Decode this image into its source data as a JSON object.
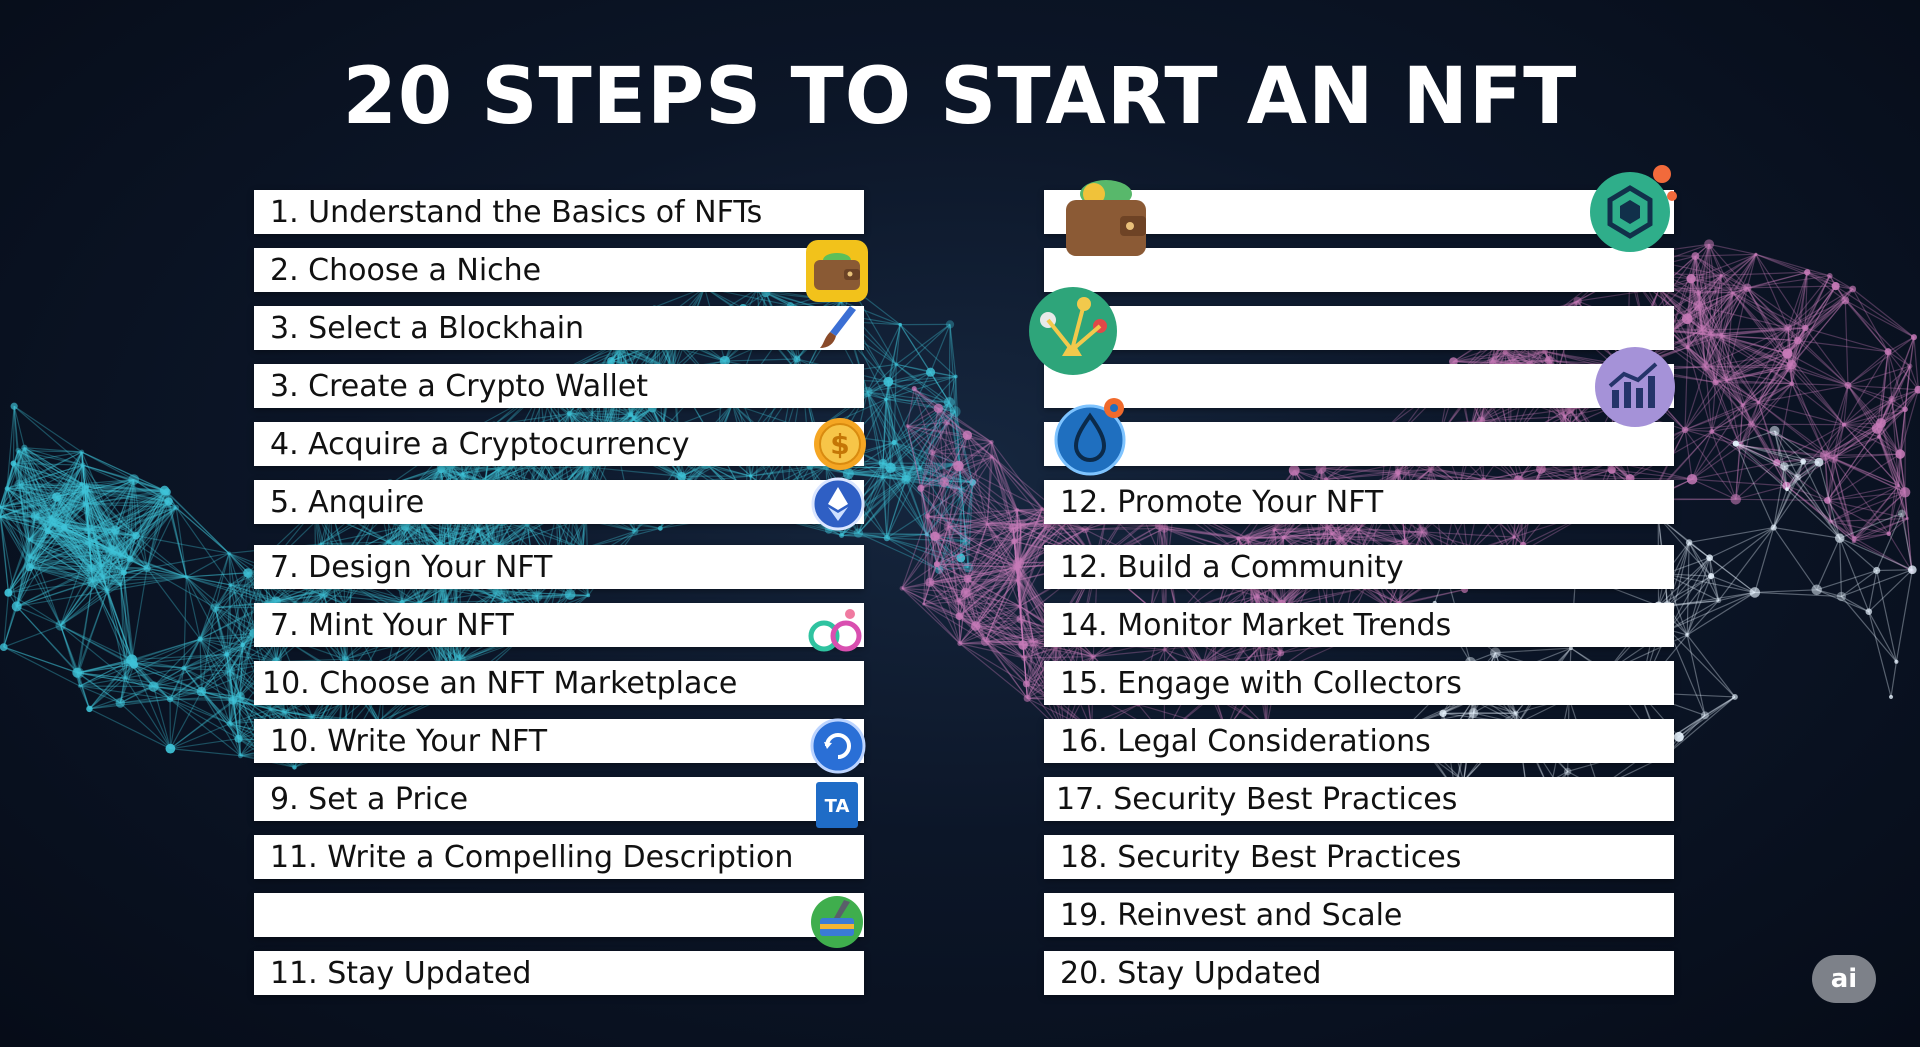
{
  "title": "20 STEPS TO START AN NFT",
  "left_steps": [
    {
      "label": "1. Understand the Basics of NFTs"
    },
    {
      "label": "2. Choose a Niche",
      "icon": "wallet-icon"
    },
    {
      "label": "3. Select a Blockhain",
      "icon": "paintbrush-icon"
    },
    {
      "label": "3. Create a Crypto Wallet"
    },
    {
      "label": "4. Acquire a Cryptocurrency",
      "icon": "coin-icon"
    },
    {
      "label": "5. Anquire",
      "icon": "ethereum-icon"
    },
    {
      "label": "7. Design Your NFT"
    },
    {
      "label": "7. Mint Your NFT",
      "icon": "link-rings-icon"
    },
    {
      "label": "10. Choose an NFT Marketplace"
    },
    {
      "label": "10. Write Your NFT",
      "icon": "refresh-globe-icon"
    },
    {
      "label": "9. Set a Price",
      "icon": "translate-icon"
    },
    {
      "label": "11. Write a Compelling Description"
    },
    {
      "label": "",
      "icon": "toolbox-icon"
    },
    {
      "label": "11. Stay Updated"
    }
  ],
  "right_steps": [
    {
      "label": "",
      "icon": "wallet-cash-icon"
    },
    {
      "label": ""
    },
    {
      "label": "",
      "icon": "network-node-icon"
    },
    {
      "label": "",
      "icon": "growth-chart-icon"
    },
    {
      "label": "",
      "icon": "crypto-drop-icon"
    },
    {
      "label": "12. Promote  Your NFT"
    },
    {
      "label": "12. Build a Community"
    },
    {
      "label": "14. Monitor Market Trends"
    },
    {
      "label": "15. Engage with Collectors"
    },
    {
      "label": "16. Legal Considerations"
    },
    {
      "label": "17. Security Best Practices"
    },
    {
      "label": "18. Security Best Practices"
    },
    {
      "label": "19. Reinvest and Scale"
    },
    {
      "label": "20. Stay Updated"
    }
  ],
  "extra_icons": [
    "blockchain-cube-icon"
  ],
  "badge": "ai",
  "colors": {
    "background": "#0b1526",
    "network_cyan": "#3fc3d8",
    "network_pink": "#c77ab8",
    "row_fill": "#ffffff"
  }
}
